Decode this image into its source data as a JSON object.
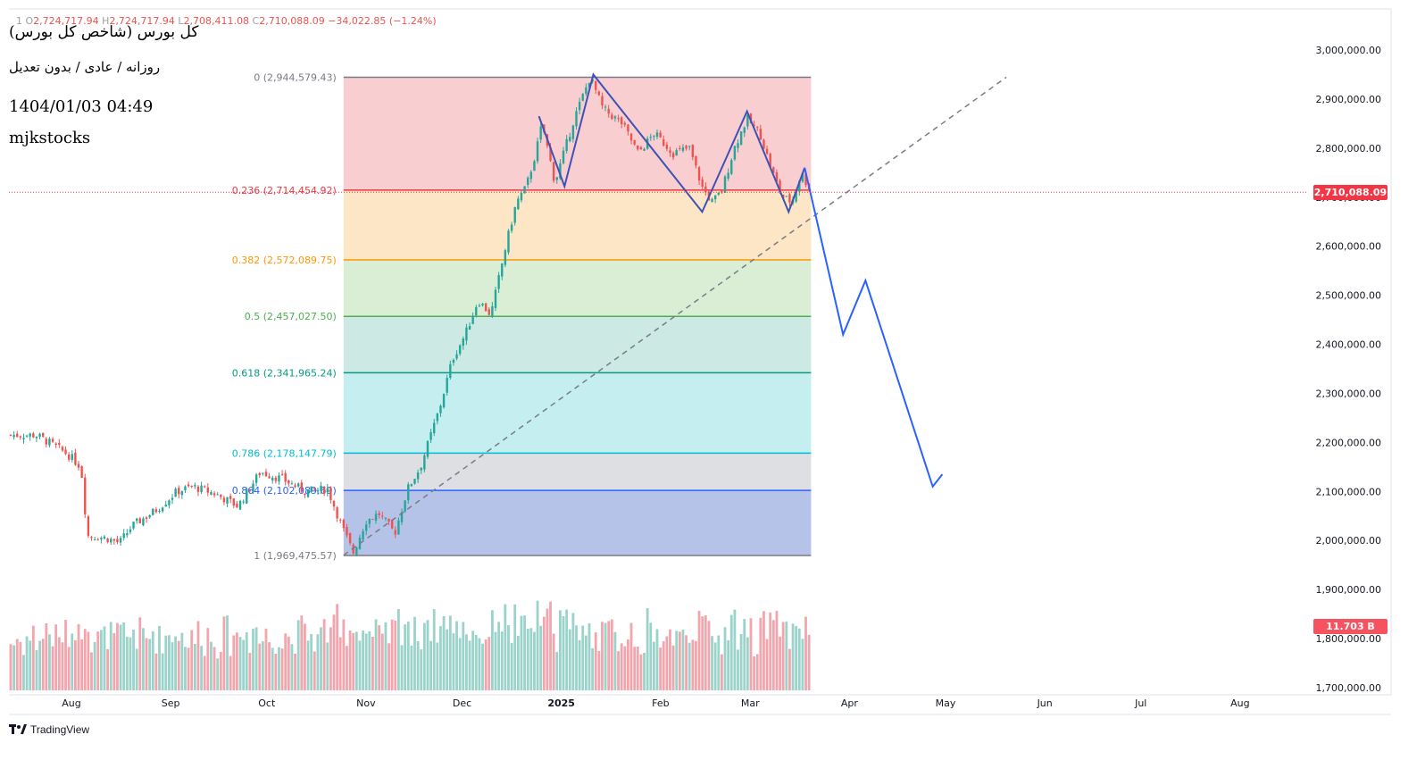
{
  "ohlc": {
    "symbol": "1",
    "open_label": "O",
    "open": "2,724,717.94",
    "high_label": "H",
    "high": "2,724,717.94",
    "low_label": "L",
    "low": "2,708,411.08",
    "close_label": "C",
    "close": "2,710,088.09",
    "change": "−34,022.85 (−1.24%)"
  },
  "watermark": {
    "title": "کل بورس (شاخص کل بورس)",
    "settings": "روزانه / عادی / بدون تعدیل",
    "datetime": "1404/01/03 04:49",
    "author": "mjkstocks"
  },
  "footer": {
    "brand": "TradingView"
  },
  "colors": {
    "up": "#26a69a",
    "down": "#ef5350",
    "drawing": "#3f51b5",
    "projection": "#2962ff",
    "price_tag": "#f23645"
  },
  "chart_data": {
    "type": "candlestick",
    "y_axis": {
      "ticks": [
        "3,000,000.00",
        "2,900,000.00",
        "2,800,000.00",
        "2,700,000.00",
        "2,600,000.00",
        "2,500,000.00",
        "2,400,000.00",
        "2,300,000.00",
        "2,200,000.00",
        "2,100,000.00",
        "2,000,000.00",
        "1,900,000.00",
        "1,800,000.00",
        "1,700,000.00"
      ],
      "tick_values": [
        3000000,
        2900000,
        2800000,
        2700000,
        2600000,
        2500000,
        2400000,
        2300000,
        2200000,
        2100000,
        2000000,
        1900000,
        1800000,
        1700000
      ],
      "range": [
        1690000,
        3020000
      ]
    },
    "x_axis": {
      "ticks": [
        "Aug",
        "Sep",
        "Oct",
        "Nov",
        "Dec",
        "2025",
        "Feb",
        "Mar",
        "Apr",
        "May",
        "Jun",
        "Jul",
        "Aug"
      ],
      "range": [
        "2024-07-20",
        "2025-09-01"
      ]
    },
    "last_price_tag": "2,710,088.09",
    "volume_tag": "11.703 B",
    "fib_retracement": {
      "levels": [
        {
          "ratio": 0,
          "label": "0 (2,944,579.43)",
          "price": 2944579.43,
          "color": "#787b86",
          "fill": "#f8c9cc"
        },
        {
          "ratio": 0.236,
          "label": "0.236 (2,714,454.92)",
          "price": 2714454.92,
          "color": "#f23645",
          "fill": "#fde3bf"
        },
        {
          "ratio": 0.382,
          "label": "0.382 (2,572,089.75)",
          "price": 2572089.75,
          "color": "#ff9800",
          "fill": "#d6ecd2"
        },
        {
          "ratio": 0.5,
          "label": "0.5 (2,457,027.50)",
          "price": 2457027.5,
          "color": "#4caf50",
          "fill": "#c6e7e0"
        },
        {
          "ratio": 0.618,
          "label": "0.618 (2,341,965.24)",
          "price": 2341965.24,
          "color": "#089981",
          "fill": "#bfecf0"
        },
        {
          "ratio": 0.786,
          "label": "0.786 (2,178,147.79)",
          "price": 2178147.79,
          "color": "#00bcd4",
          "fill": "#d9dce0"
        },
        {
          "ratio": 0.864,
          "label": "0.864 (2,102,089.69)",
          "price": 2102089.69,
          "color": "#2962ff",
          "fill": "#aebde6"
        },
        {
          "ratio": 1,
          "label": "1 (1,969,475.57)",
          "price": 1969475.57,
          "color": "#787b86",
          "fill": ""
        }
      ],
      "start_date": "2024-10-25",
      "end_date": "2025-03-20"
    },
    "price_path": [
      [
        "2024-07-21",
        2215000
      ],
      [
        "2024-07-25",
        2200000
      ],
      [
        "2024-07-31",
        2175000
      ],
      [
        "2024-08-04",
        2150000
      ],
      [
        "2024-08-06",
        2010000
      ],
      [
        "2024-08-12",
        2005000
      ],
      [
        "2024-08-16",
        1995000
      ],
      [
        "2024-08-20",
        2030000
      ],
      [
        "2024-08-27",
        2060000
      ],
      [
        "2024-09-03",
        2100000
      ],
      [
        "2024-09-08",
        2110000
      ],
      [
        "2024-09-15",
        2095000
      ],
      [
        "2024-09-22",
        2070000
      ],
      [
        "2024-09-29",
        2140000
      ],
      [
        "2024-10-06",
        2125000
      ],
      [
        "2024-10-13",
        2100000
      ],
      [
        "2024-10-20",
        2105000
      ],
      [
        "2024-10-25",
        2020000
      ],
      [
        "2024-10-28",
        1975000
      ],
      [
        "2024-11-01",
        2040000
      ],
      [
        "2024-11-05",
        2055000
      ],
      [
        "2024-11-10",
        2015000
      ],
      [
        "2024-11-14",
        2105000
      ],
      [
        "2024-11-18",
        2150000
      ],
      [
        "2024-11-24",
        2270000
      ],
      [
        "2024-11-28",
        2370000
      ],
      [
        "2024-12-02",
        2420000
      ],
      [
        "2024-12-06",
        2490000
      ],
      [
        "2024-12-10",
        2460000
      ],
      [
        "2024-12-15",
        2610000
      ],
      [
        "2024-12-18",
        2690000
      ],
      [
        "2024-12-21",
        2720000
      ],
      [
        "2024-12-24",
        2790000
      ],
      [
        "2024-12-26",
        2850000
      ],
      [
        "2024-12-30",
        2730000
      ],
      [
        "2025-01-05",
        2860000
      ],
      [
        "2025-01-10",
        2945000
      ],
      [
        "2025-01-14",
        2880000
      ],
      [
        "2025-01-20",
        2850000
      ],
      [
        "2025-01-25",
        2790000
      ],
      [
        "2025-01-30",
        2830000
      ],
      [
        "2025-02-05",
        2790000
      ],
      [
        "2025-02-10",
        2800000
      ],
      [
        "2025-02-14",
        2720000
      ],
      [
        "2025-02-17",
        2690000
      ],
      [
        "2025-02-20",
        2710000
      ],
      [
        "2025-02-24",
        2800000
      ],
      [
        "2025-02-28",
        2860000
      ],
      [
        "2025-03-04",
        2830000
      ],
      [
        "2025-03-08",
        2750000
      ],
      [
        "2025-03-11",
        2700000
      ],
      [
        "2025-03-14",
        2690000
      ],
      [
        "2025-03-17",
        2750000
      ],
      [
        "2025-03-20",
        2710000
      ]
    ],
    "pattern_line": [
      [
        "2024-12-25",
        2865000
      ],
      [
        "2025-01-02",
        2722000
      ],
      [
        "2025-01-11",
        2950000
      ],
      [
        "2025-02-14",
        2670000
      ],
      [
        "2025-02-28",
        2875000
      ],
      [
        "2025-03-13",
        2670000
      ],
      [
        "2025-03-18",
        2760000
      ]
    ],
    "projection_line": [
      [
        "2025-03-18",
        2760000
      ],
      [
        "2025-03-30",
        2420000
      ],
      [
        "2025-04-06",
        2530000
      ],
      [
        "2025-04-27",
        2110000
      ],
      [
        "2025-04-30",
        2135000
      ]
    ],
    "trend_line": [
      [
        "2024-10-25",
        1970000
      ],
      [
        "2025-05-20",
        2944579
      ]
    ]
  }
}
